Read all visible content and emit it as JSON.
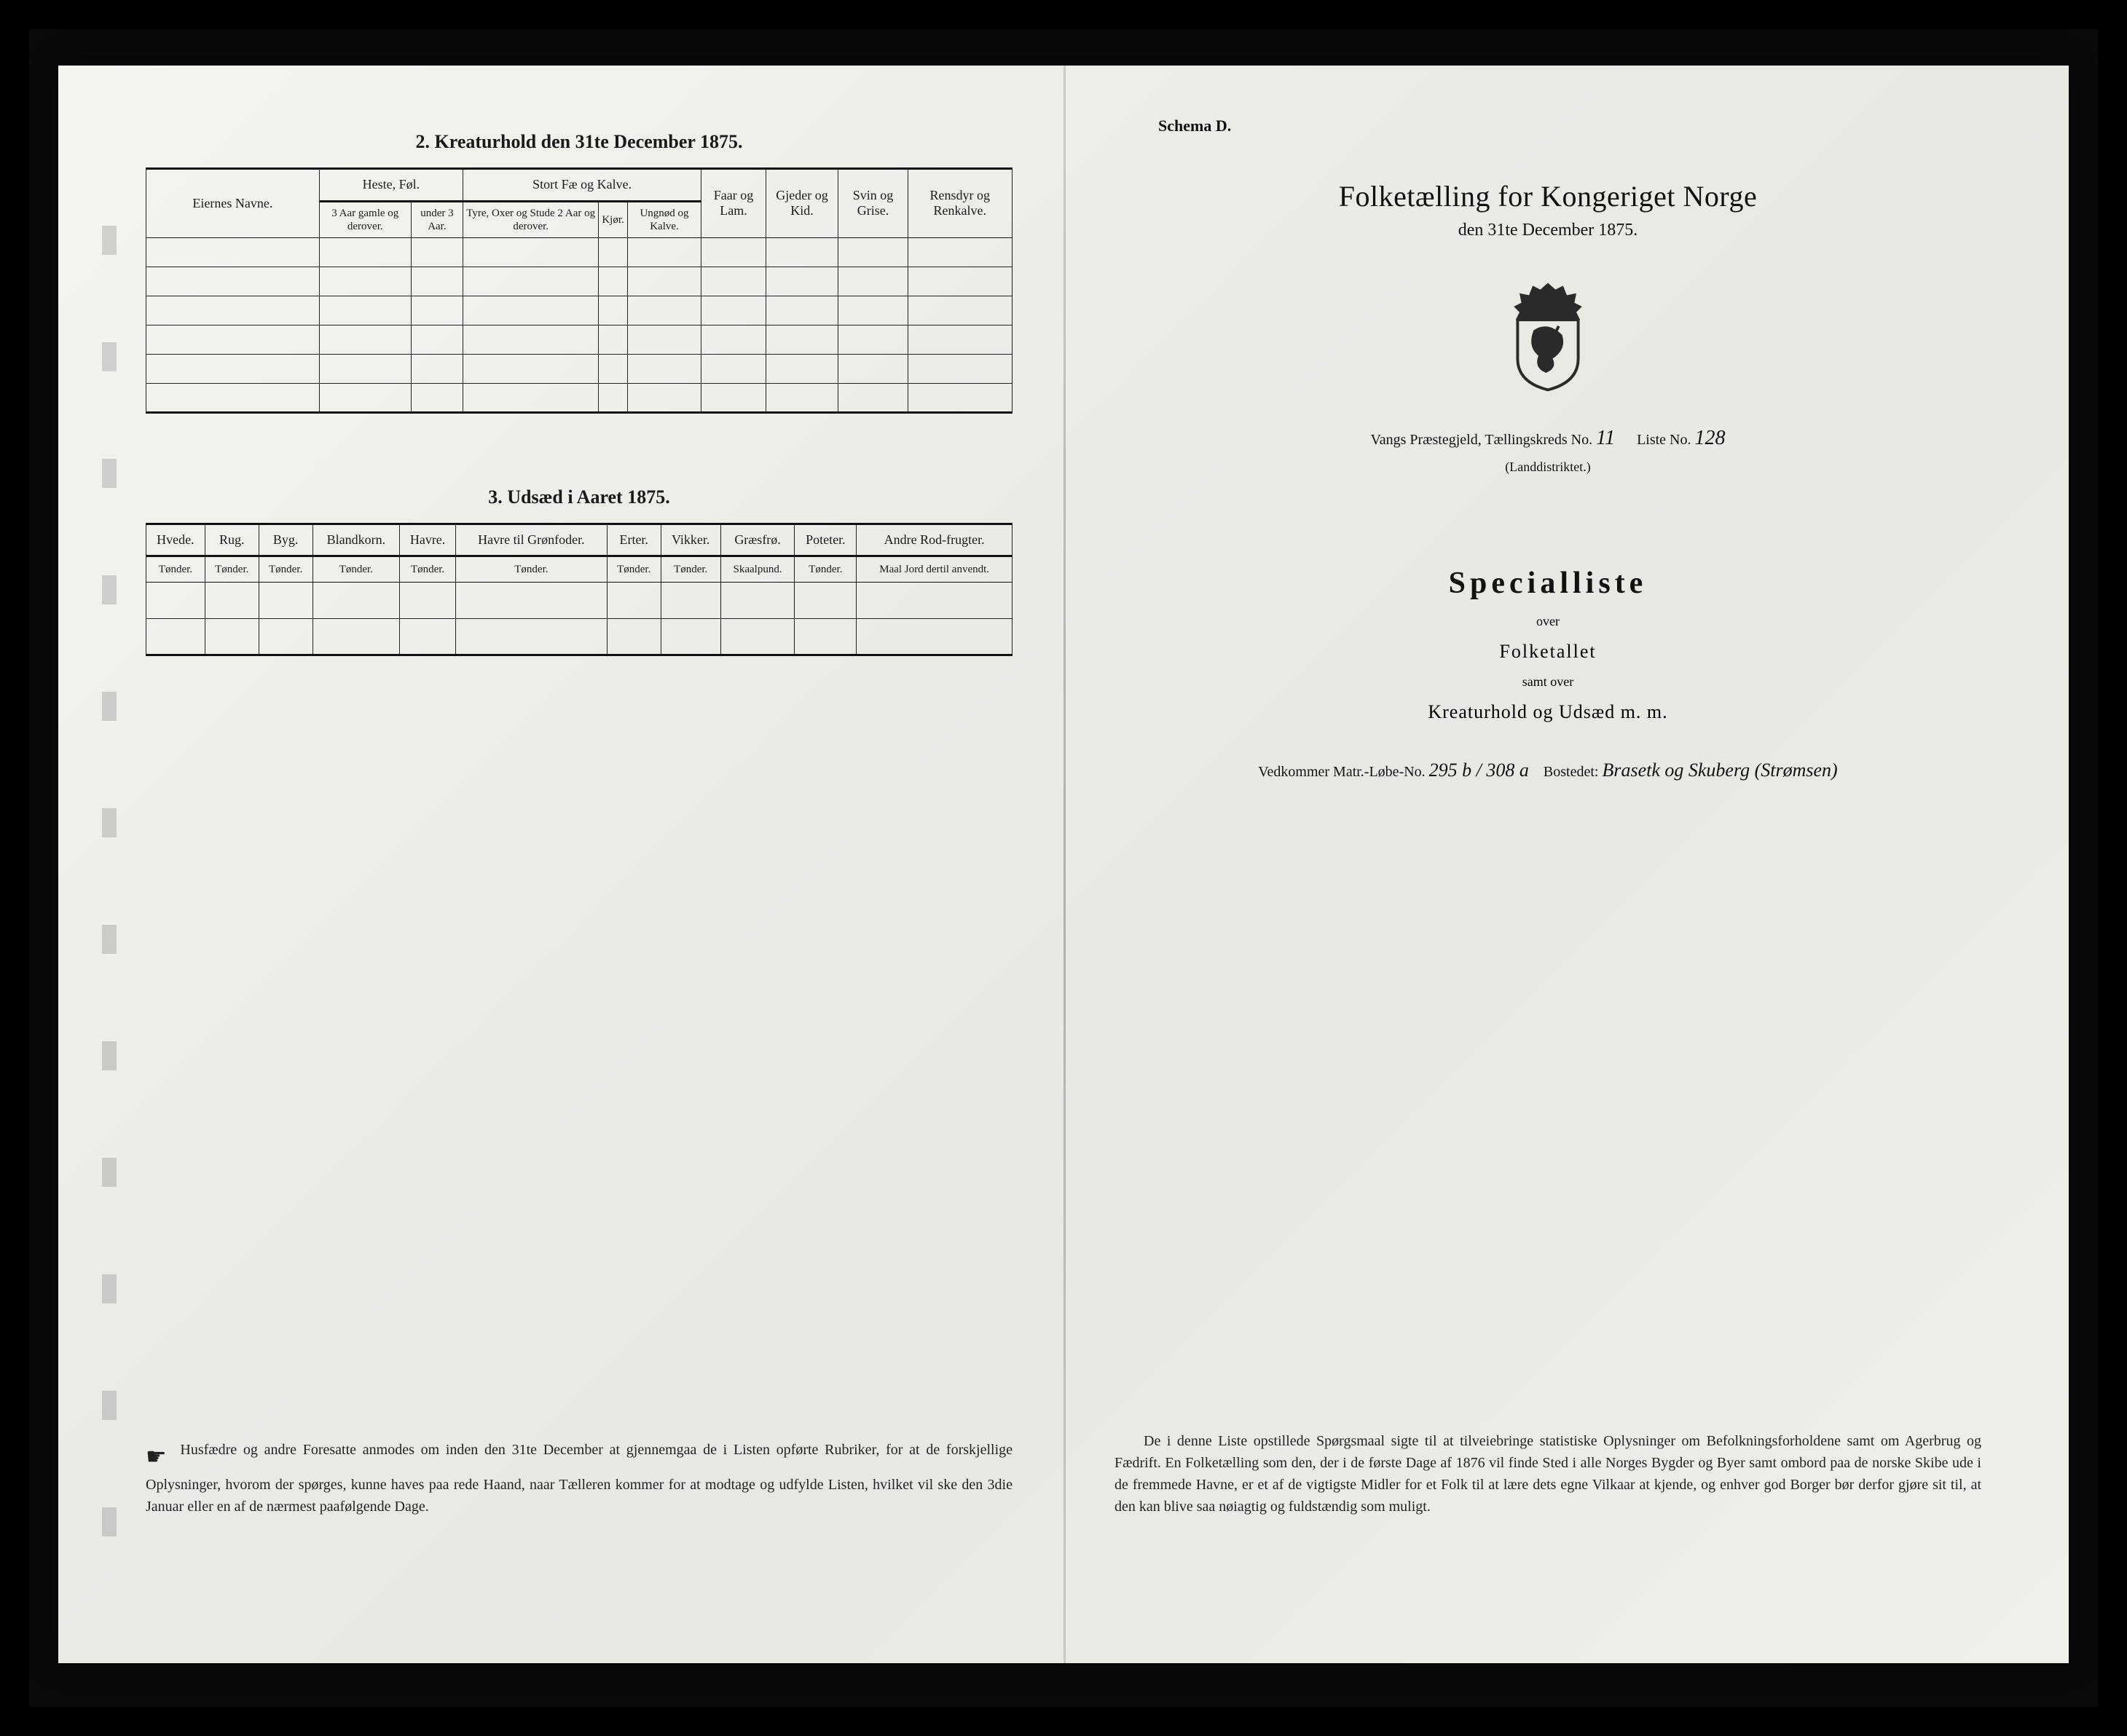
{
  "left": {
    "section2_title": "2.  Kreaturhold den 31te December 1875.",
    "table2": {
      "col_eiernes": "Eiernes Navne.",
      "grp_heste": "Heste, Føl.",
      "grp_stort": "Stort Fæ og Kalve.",
      "col_faar": "Faar og Lam.",
      "col_gjeder": "Gjeder og Kid.",
      "col_svin": "Svin og Grise.",
      "col_rensdyr": "Rensdyr og Renkalve.",
      "sub_heste1": "3 Aar gamle og derover.",
      "sub_heste2": "under 3 Aar.",
      "sub_stort1": "Tyre, Oxer og Stude 2 Aar og derover.",
      "sub_stort2": "Kjør.",
      "sub_stort3": "Ungnød og Kalve.",
      "body_rows": 6
    },
    "section3_title": "3.  Udsæd i Aaret 1875.",
    "table3": {
      "columns": [
        {
          "h1": "Hvede.",
          "h2": "Tønder."
        },
        {
          "h1": "Rug.",
          "h2": "Tønder."
        },
        {
          "h1": "Byg.",
          "h2": "Tønder."
        },
        {
          "h1": "Blandkorn.",
          "h2": "Tønder."
        },
        {
          "h1": "Havre.",
          "h2": "Tønder."
        },
        {
          "h1": "Havre til Grønfoder.",
          "h2": "Tønder."
        },
        {
          "h1": "Erter.",
          "h2": "Tønder."
        },
        {
          "h1": "Vikker.",
          "h2": "Tønder."
        },
        {
          "h1": "Græsfrø.",
          "h2": "Skaalpund."
        },
        {
          "h1": "Poteter.",
          "h2": "Tønder."
        },
        {
          "h1": "Andre Rod-frugter.",
          "h2": "Maal Jord dertil anvendt."
        }
      ],
      "body_rows": 2
    },
    "footer": "Husfædre og andre Foresatte anmodes om inden den 31te December at gjennemgaa de i Listen opførte Rubriker, for at de forskjellige Oplysninger, hvorom der spørges, kunne haves paa rede Haand, naar Tælleren kommer for at modtage og udfylde Listen, hvilket vil ske den 3die Januar eller en af de nærmest paafølgende Dage."
  },
  "right": {
    "schema": "Schema D.",
    "title": "Folketælling for Kongeriget Norge",
    "subtitle": "den 31te December 1875.",
    "parish_prefix": "Vangs Præstegjeld, Tællingskreds No.",
    "kreds_no": "11",
    "liste_label": "Liste No.",
    "liste_no": "128",
    "landdistrikt": "(Landdistriktet.)",
    "special": "Specialliste",
    "over": "over",
    "folketallet": "Folketallet",
    "samt": "samt over",
    "kreatur": "Kreaturhold og Udsæd m. m.",
    "vedkommer_label": "Vedkommer Matr.-Løbe-No.",
    "matr_no": "295 b / 308 a",
    "bosted_label": "Bostedet:",
    "bosted_value": "Brasetk og Skuberg (Strømsen)",
    "footer": "De i denne Liste opstillede Spørgsmaal sigte til at tilveiebringe statistiske Oplysninger om Befolkningsforholdene samt om Agerbrug og Fædrift.  En Folketælling som den, der i de første Dage af 1876 vil finde Sted i alle Norges Bygder og Byer samt ombord paa de norske Skibe ude i de fremmede Havne, er et af de vigtigste Midler for et Folk til at lære dets egne Vilkaar at kjende, og enhver god Borger bør derfor gjøre sit til, at den kan blive saa nøiagtig og fuldstændig som muligt."
  },
  "colors": {
    "ink": "#1a1a1a",
    "paper": "#efeee9",
    "border": "#222222"
  }
}
